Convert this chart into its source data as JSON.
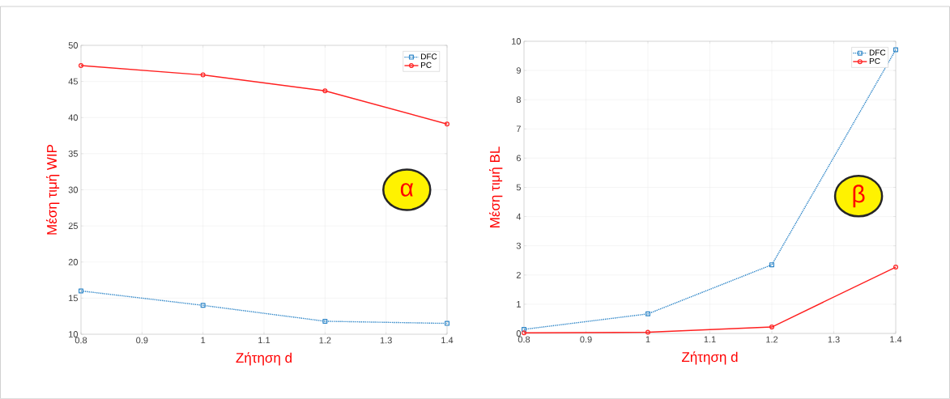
{
  "chart_data": [
    {
      "type": "line",
      "xlabel": "Ζήτηση d",
      "ylabel": "Μέση τιμή WIP",
      "x": [
        0.8,
        1.0,
        1.2,
        1.4
      ],
      "series": [
        {
          "name": "DFC",
          "color": "#2e86c8",
          "values": [
            16.0,
            14.0,
            11.8,
            11.5
          ],
          "marker": "square",
          "line_style": "dotted"
        },
        {
          "name": "PC",
          "color": "#ff2020",
          "values": [
            47.2,
            45.9,
            43.7,
            39.1
          ],
          "marker": "circle",
          "line_style": "solid"
        }
      ],
      "xlim": [
        0.8,
        1.4
      ],
      "xticks": [
        0.8,
        0.9,
        1,
        1.1,
        1.2,
        1.3,
        1.4
      ],
      "ylim": [
        10,
        50
      ],
      "yticks": [
        10,
        15,
        20,
        25,
        30,
        35,
        40,
        45,
        50
      ],
      "grid": true,
      "legend": "top right",
      "annotations": [
        "α"
      ]
    },
    {
      "type": "line",
      "xlabel": "Ζήτηση d",
      "ylabel": "Μέση τιμή BL",
      "x": [
        0.8,
        1.0,
        1.2,
        1.4
      ],
      "series": [
        {
          "name": "DFC",
          "color": "#2e86c8",
          "values": [
            0.14,
            0.67,
            2.35,
            9.71
          ],
          "marker": "square",
          "line_style": "dotted"
        },
        {
          "name": "PC",
          "color": "#ff2020",
          "values": [
            0.02,
            0.04,
            0.22,
            2.27
          ],
          "marker": "circle",
          "line_style": "solid"
        }
      ],
      "xlim": [
        0.8,
        1.4
      ],
      "xticks": [
        0.8,
        0.9,
        1,
        1.1,
        1.2,
        1.3,
        1.4
      ],
      "ylim": [
        0,
        10
      ],
      "yticks": [
        0,
        1,
        2,
        3,
        4,
        5,
        6,
        7,
        8,
        9,
        10
      ],
      "grid": true,
      "legend": "top right",
      "annotations": [
        "β"
      ]
    }
  ]
}
